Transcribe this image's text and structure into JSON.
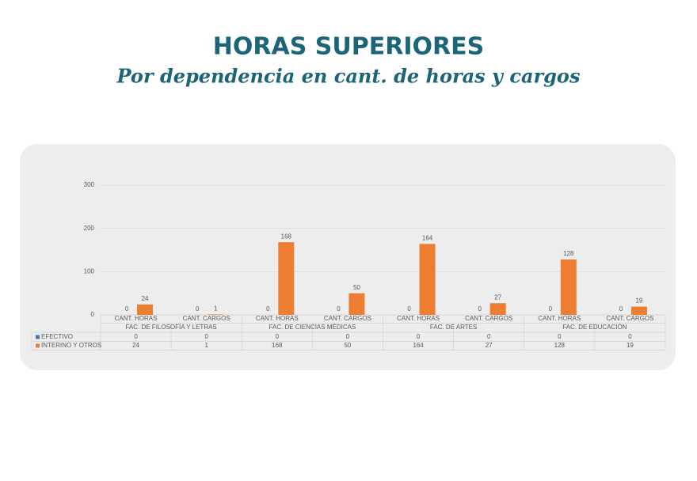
{
  "chart_data": {
    "type": "bar",
    "title": "HORAS SUPERIORES",
    "subtitle": "Por dependencia en cant. de horas y cargos",
    "categories": [
      "CANT. HORAS",
      "CANT. CARGOS",
      "CANT. HORAS",
      "CANT. CARGOS",
      "CANT. HORAS",
      "CANT. CARGOS",
      "CANT. HORAS",
      "CANT. CARGOS"
    ],
    "category_groups": [
      "FAC. DE FILOSOFÍA Y LETRAS",
      "FAC. DE CIENCIAS MÉDICAS",
      "FAC. DE ARTES",
      "FAC. DE EDUCACIÓN"
    ],
    "series": [
      {
        "name": "EFECTIVO",
        "color": "#4472c4",
        "values": [
          0,
          0,
          0,
          0,
          0,
          0,
          0,
          0
        ]
      },
      {
        "name": "INTERINO Y OTROS",
        "color": "#ed7d31",
        "values": [
          24,
          1,
          168,
          50,
          164,
          27,
          128,
          19
        ]
      }
    ],
    "ylim": [
      0,
      300
    ],
    "yticks": [
      0,
      100,
      200,
      300
    ],
    "grid": true
  }
}
